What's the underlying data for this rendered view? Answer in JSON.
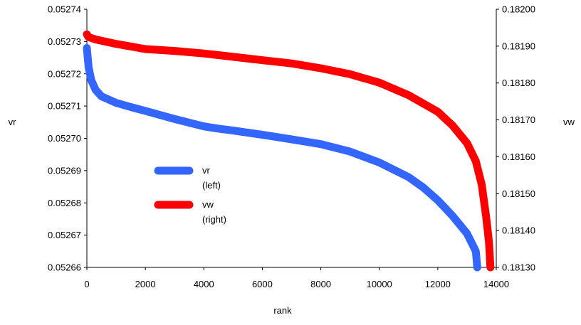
{
  "chart_data": {
    "type": "line",
    "title": "",
    "xlabel": "rank",
    "ylabel_left": "vr",
    "ylabel_right": "vw",
    "xlim": [
      0,
      14000
    ],
    "x_ticks": [
      "0",
      "2000",
      "4000",
      "6000",
      "8000",
      "10000",
      "12000",
      "14000"
    ],
    "ylim_left": [
      0.05266,
      0.05274
    ],
    "y_ticks_left": [
      "0.05266",
      "0.05267",
      "0.05268",
      "0.05269",
      "0.05270",
      "0.05271",
      "0.05272",
      "0.05273",
      "0.05274"
    ],
    "ylim_right": [
      0.1813,
      0.182
    ],
    "y_ticks_right": [
      "0.18130",
      "0.18140",
      "0.18150",
      "0.18160",
      "0.18170",
      "0.18180",
      "0.18190",
      "0.18200"
    ],
    "grid": false,
    "legend_position": "center-left",
    "series": [
      {
        "name": "vr (left)",
        "axis": "left",
        "color": "#3366ff",
        "points": [
          [
            0,
            0.052728
          ],
          [
            20,
            0.052726
          ],
          [
            60,
            0.052722
          ],
          [
            150,
            0.052718
          ],
          [
            300,
            0.052715
          ],
          [
            500,
            0.052713
          ],
          [
            1000,
            0.052711
          ],
          [
            1500,
            0.0527097
          ],
          [
            2000,
            0.0527085
          ],
          [
            3000,
            0.052706
          ],
          [
            4000,
            0.0527037
          ],
          [
            4500,
            0.052703
          ],
          [
            5000,
            0.0527024
          ],
          [
            6000,
            0.0527011
          ],
          [
            7000,
            0.0526997
          ],
          [
            8000,
            0.0526982
          ],
          [
            9000,
            0.0526959
          ],
          [
            10000,
            0.0526925
          ],
          [
            11000,
            0.052688
          ],
          [
            11500,
            0.0526848
          ],
          [
            12000,
            0.0526808
          ],
          [
            12500,
            0.052676
          ],
          [
            13000,
            0.0526705
          ],
          [
            13300,
            0.052665
          ],
          [
            13350,
            0.05266
          ]
        ]
      },
      {
        "name": "vw (right)",
        "axis": "right",
        "color": "#ff0000",
        "points": [
          [
            0,
            0.181932
          ],
          [
            50,
            0.181925
          ],
          [
            300,
            0.181918
          ],
          [
            1000,
            0.181906
          ],
          [
            2000,
            0.181892
          ],
          [
            3000,
            0.181887
          ],
          [
            4000,
            0.18188
          ],
          [
            5000,
            0.181871
          ],
          [
            6000,
            0.181862
          ],
          [
            7000,
            0.181853
          ],
          [
            8000,
            0.18184
          ],
          [
            9000,
            0.181824
          ],
          [
            10000,
            0.181801
          ],
          [
            11000,
            0.181767
          ],
          [
            12000,
            0.181722
          ],
          [
            12500,
            0.181685
          ],
          [
            13000,
            0.181637
          ],
          [
            13300,
            0.181588
          ],
          [
            13500,
            0.181525
          ],
          [
            13650,
            0.18144
          ],
          [
            13750,
            0.18137
          ],
          [
            13800,
            0.1813
          ]
        ]
      }
    ]
  }
}
